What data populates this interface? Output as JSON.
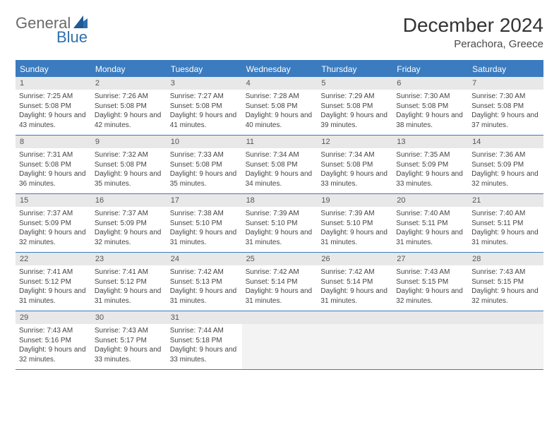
{
  "logo": {
    "text1": "General",
    "text2": "Blue"
  },
  "title": "December 2024",
  "location": "Perachora, Greece",
  "colors": {
    "header_bg": "#3b7bbf",
    "header_text": "#ffffff",
    "border": "#3b7bbf",
    "daynum_bg": "#e8e8e8",
    "empty_bg": "#f3f3f3",
    "body_text": "#444444",
    "title_text": "#333333",
    "logo_gray": "#6a6a6a",
    "logo_blue": "#2f6fae"
  },
  "dayNames": [
    "Sunday",
    "Monday",
    "Tuesday",
    "Wednesday",
    "Thursday",
    "Friday",
    "Saturday"
  ],
  "weeks": [
    [
      {
        "n": "1",
        "sr": "7:25 AM",
        "ss": "5:08 PM",
        "dl": "9 hours and 43 minutes."
      },
      {
        "n": "2",
        "sr": "7:26 AM",
        "ss": "5:08 PM",
        "dl": "9 hours and 42 minutes."
      },
      {
        "n": "3",
        "sr": "7:27 AM",
        "ss": "5:08 PM",
        "dl": "9 hours and 41 minutes."
      },
      {
        "n": "4",
        "sr": "7:28 AM",
        "ss": "5:08 PM",
        "dl": "9 hours and 40 minutes."
      },
      {
        "n": "5",
        "sr": "7:29 AM",
        "ss": "5:08 PM",
        "dl": "9 hours and 39 minutes."
      },
      {
        "n": "6",
        "sr": "7:30 AM",
        "ss": "5:08 PM",
        "dl": "9 hours and 38 minutes."
      },
      {
        "n": "7",
        "sr": "7:30 AM",
        "ss": "5:08 PM",
        "dl": "9 hours and 37 minutes."
      }
    ],
    [
      {
        "n": "8",
        "sr": "7:31 AM",
        "ss": "5:08 PM",
        "dl": "9 hours and 36 minutes."
      },
      {
        "n": "9",
        "sr": "7:32 AM",
        "ss": "5:08 PM",
        "dl": "9 hours and 35 minutes."
      },
      {
        "n": "10",
        "sr": "7:33 AM",
        "ss": "5:08 PM",
        "dl": "9 hours and 35 minutes."
      },
      {
        "n": "11",
        "sr": "7:34 AM",
        "ss": "5:08 PM",
        "dl": "9 hours and 34 minutes."
      },
      {
        "n": "12",
        "sr": "7:34 AM",
        "ss": "5:08 PM",
        "dl": "9 hours and 33 minutes."
      },
      {
        "n": "13",
        "sr": "7:35 AM",
        "ss": "5:09 PM",
        "dl": "9 hours and 33 minutes."
      },
      {
        "n": "14",
        "sr": "7:36 AM",
        "ss": "5:09 PM",
        "dl": "9 hours and 32 minutes."
      }
    ],
    [
      {
        "n": "15",
        "sr": "7:37 AM",
        "ss": "5:09 PM",
        "dl": "9 hours and 32 minutes."
      },
      {
        "n": "16",
        "sr": "7:37 AM",
        "ss": "5:09 PM",
        "dl": "9 hours and 32 minutes."
      },
      {
        "n": "17",
        "sr": "7:38 AM",
        "ss": "5:10 PM",
        "dl": "9 hours and 31 minutes."
      },
      {
        "n": "18",
        "sr": "7:39 AM",
        "ss": "5:10 PM",
        "dl": "9 hours and 31 minutes."
      },
      {
        "n": "19",
        "sr": "7:39 AM",
        "ss": "5:10 PM",
        "dl": "9 hours and 31 minutes."
      },
      {
        "n": "20",
        "sr": "7:40 AM",
        "ss": "5:11 PM",
        "dl": "9 hours and 31 minutes."
      },
      {
        "n": "21",
        "sr": "7:40 AM",
        "ss": "5:11 PM",
        "dl": "9 hours and 31 minutes."
      }
    ],
    [
      {
        "n": "22",
        "sr": "7:41 AM",
        "ss": "5:12 PM",
        "dl": "9 hours and 31 minutes."
      },
      {
        "n": "23",
        "sr": "7:41 AM",
        "ss": "5:12 PM",
        "dl": "9 hours and 31 minutes."
      },
      {
        "n": "24",
        "sr": "7:42 AM",
        "ss": "5:13 PM",
        "dl": "9 hours and 31 minutes."
      },
      {
        "n": "25",
        "sr": "7:42 AM",
        "ss": "5:14 PM",
        "dl": "9 hours and 31 minutes."
      },
      {
        "n": "26",
        "sr": "7:42 AM",
        "ss": "5:14 PM",
        "dl": "9 hours and 31 minutes."
      },
      {
        "n": "27",
        "sr": "7:43 AM",
        "ss": "5:15 PM",
        "dl": "9 hours and 32 minutes."
      },
      {
        "n": "28",
        "sr": "7:43 AM",
        "ss": "5:15 PM",
        "dl": "9 hours and 32 minutes."
      }
    ],
    [
      {
        "n": "29",
        "sr": "7:43 AM",
        "ss": "5:16 PM",
        "dl": "9 hours and 32 minutes."
      },
      {
        "n": "30",
        "sr": "7:43 AM",
        "ss": "5:17 PM",
        "dl": "9 hours and 33 minutes."
      },
      {
        "n": "31",
        "sr": "7:44 AM",
        "ss": "5:18 PM",
        "dl": "9 hours and 33 minutes."
      },
      null,
      null,
      null,
      null
    ]
  ],
  "labels": {
    "sunrise": "Sunrise:",
    "sunset": "Sunset:",
    "daylight": "Daylight:"
  }
}
